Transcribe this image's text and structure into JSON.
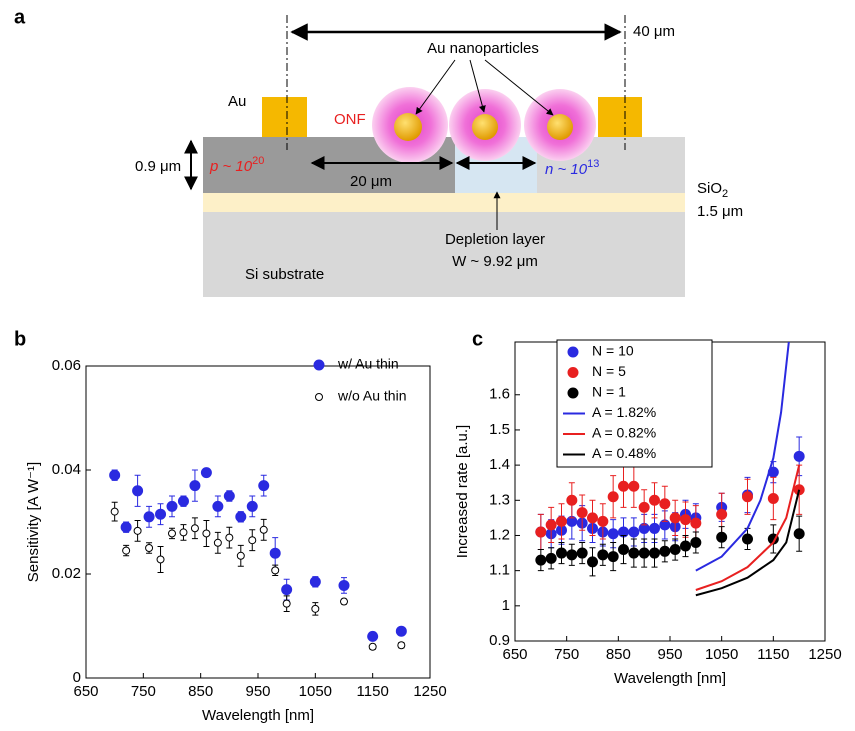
{
  "panels": {
    "a": "a",
    "b": "b",
    "c": "c"
  },
  "diagram": {
    "span": "40 μm",
    "nanoparticles": "Au nanoparticles",
    "electrode": "Au",
    "onf": "ONF",
    "thickness": "0.9 μm",
    "p_doping": {
      "text": "p ~ 10",
      "sup": "20"
    },
    "gap": "20 μm",
    "n_doping": {
      "text": "n ~ 10",
      "sup": "13"
    },
    "oxide": {
      "text": "SiO",
      "sub": "2"
    },
    "oxide_thickness": "1.5 μm",
    "depletion": "Depletion layer",
    "depletion_width": "W ~ 9.92 μm",
    "substrate": "Si substrate"
  },
  "chart_data": [
    {
      "type": "scatter",
      "xlabel": "Wavelength [nm]",
      "ylabel": "Sensitivity [A W⁻¹]",
      "x": [
        700,
        720,
        740,
        760,
        780,
        800,
        820,
        840,
        860,
        880,
        900,
        920,
        940,
        960,
        980,
        1000,
        1050,
        1100,
        1150,
        1200
      ],
      "xlim": [
        650,
        1250
      ],
      "xticks": [
        650,
        750,
        850,
        950,
        1050,
        1150,
        1250
      ],
      "ylim": [
        0,
        0.06
      ],
      "yticks": [
        0,
        0.02,
        0.04,
        0.06
      ],
      "legend": "upper right",
      "legend_frame": false,
      "series": [
        {
          "name": "w/ Au thin",
          "color": "#2a2ae0",
          "marker": "filled",
          "values": [
            0.039,
            0.029,
            0.036,
            0.031,
            0.0315,
            0.033,
            0.034,
            0.037,
            0.0395,
            0.033,
            0.035,
            0.031,
            0.033,
            0.037,
            0.024,
            0.017,
            0.0185,
            0.0178,
            0.008,
            0.009
          ],
          "errors": [
            0.001,
            0.001,
            0.003,
            0.002,
            0.002,
            0.002,
            0.001,
            0.003,
            0.0005,
            0.002,
            0.001,
            0.001,
            0.002,
            0.002,
            0.003,
            0.002,
            0.001,
            0.0015,
            0.0005,
            0.0005
          ]
        },
        {
          "name": "w/o Au thin",
          "color": "#000000",
          "marker": "open",
          "values": [
            0.032,
            0.0245,
            0.0283,
            0.025,
            0.0228,
            0.0278,
            0.028,
            0.0288,
            0.0278,
            0.026,
            0.027,
            0.0235,
            0.0265,
            0.0285,
            0.0207,
            0.0143,
            0.0133,
            0.0147,
            0.006,
            0.0063
          ],
          "errors": [
            0.0018,
            0.001,
            0.002,
            0.001,
            0.0025,
            0.001,
            0.0015,
            0.002,
            0.0025,
            0.002,
            0.002,
            0.002,
            0.002,
            0.002,
            0.001,
            0.0015,
            0.0012,
            0.0005,
            0.0005,
            0.0005
          ]
        }
      ]
    },
    {
      "type": "scatter",
      "xlabel": "Wavelength [nm]",
      "ylabel": "Increased rate [a.u.]",
      "x": [
        700,
        720,
        740,
        760,
        780,
        800,
        820,
        840,
        860,
        880,
        900,
        920,
        940,
        960,
        980,
        1000,
        1050,
        1100,
        1150,
        1200
      ],
      "xlim": [
        650,
        1250
      ],
      "xticks": [
        650,
        750,
        850,
        950,
        1050,
        1150,
        1250
      ],
      "ylim": [
        0.9,
        1.75
      ],
      "yticks": [
        0.9,
        1,
        1.1,
        1.2,
        1.3,
        1.4,
        1.5,
        1.6
      ],
      "legend": "upper left",
      "legend_frame": true,
      "series": [
        {
          "name": "N = 10",
          "color": "#2a2ae0",
          "marker": "filled",
          "values": [
            1.21,
            1.205,
            1.215,
            1.24,
            1.235,
            1.22,
            1.21,
            1.205,
            1.21,
            1.21,
            1.22,
            1.22,
            1.23,
            1.225,
            1.26,
            1.25,
            1.28,
            1.315,
            1.38,
            1.425
          ],
          "errors": [
            0.05,
            0.04,
            0.04,
            0.05,
            0.05,
            0.04,
            0.04,
            0.04,
            0.04,
            0.04,
            0.04,
            0.04,
            0.04,
            0.04,
            0.04,
            0.04,
            0.04,
            0.05,
            0.03,
            0.055
          ]
        },
        {
          "name": "N = 5",
          "color": "#e82020",
          "marker": "filled",
          "values": [
            1.21,
            1.23,
            1.24,
            1.3,
            1.265,
            1.25,
            1.24,
            1.31,
            1.34,
            1.34,
            1.28,
            1.3,
            1.29,
            1.25,
            1.245,
            1.235,
            1.26,
            1.31,
            1.305,
            1.33
          ],
          "errors": [
            0.05,
            0.05,
            0.05,
            0.05,
            0.05,
            0.05,
            0.05,
            0.06,
            0.06,
            0.06,
            0.05,
            0.05,
            0.05,
            0.05,
            0.05,
            0.05,
            0.06,
            0.05,
            0.06,
            0.07
          ]
        },
        {
          "name": "N = 1",
          "color": "#000000",
          "marker": "filled",
          "values": [
            1.13,
            1.135,
            1.15,
            1.145,
            1.15,
            1.125,
            1.145,
            1.14,
            1.16,
            1.15,
            1.15,
            1.15,
            1.155,
            1.16,
            1.17,
            1.18,
            1.195,
            1.19,
            1.19,
            1.205
          ],
          "errors": [
            0.03,
            0.03,
            0.03,
            0.03,
            0.03,
            0.04,
            0.03,
            0.04,
            0.04,
            0.04,
            0.04,
            0.04,
            0.03,
            0.03,
            0.03,
            0.03,
            0.03,
            0.03,
            0.04,
            0.05
          ]
        },
        {
          "name": "A = 1.82%",
          "color": "#2a2ae0",
          "marker": "line",
          "x": [
            1000,
            1050,
            1100,
            1125,
            1150,
            1165,
            1180
          ],
          "values": [
            1.1,
            1.14,
            1.22,
            1.3,
            1.42,
            1.55,
            1.75
          ]
        },
        {
          "name": "A = 0.82%",
          "color": "#e82020",
          "marker": "line",
          "x": [
            1000,
            1050,
            1100,
            1150,
            1175,
            1200
          ],
          "values": [
            1.045,
            1.07,
            1.11,
            1.18,
            1.25,
            1.4
          ]
        },
        {
          "name": "A = 0.48%",
          "color": "#000000",
          "marker": "line",
          "x": [
            1000,
            1050,
            1100,
            1150,
            1175,
            1200
          ],
          "values": [
            1.03,
            1.05,
            1.08,
            1.13,
            1.18,
            1.33
          ]
        }
      ]
    }
  ]
}
